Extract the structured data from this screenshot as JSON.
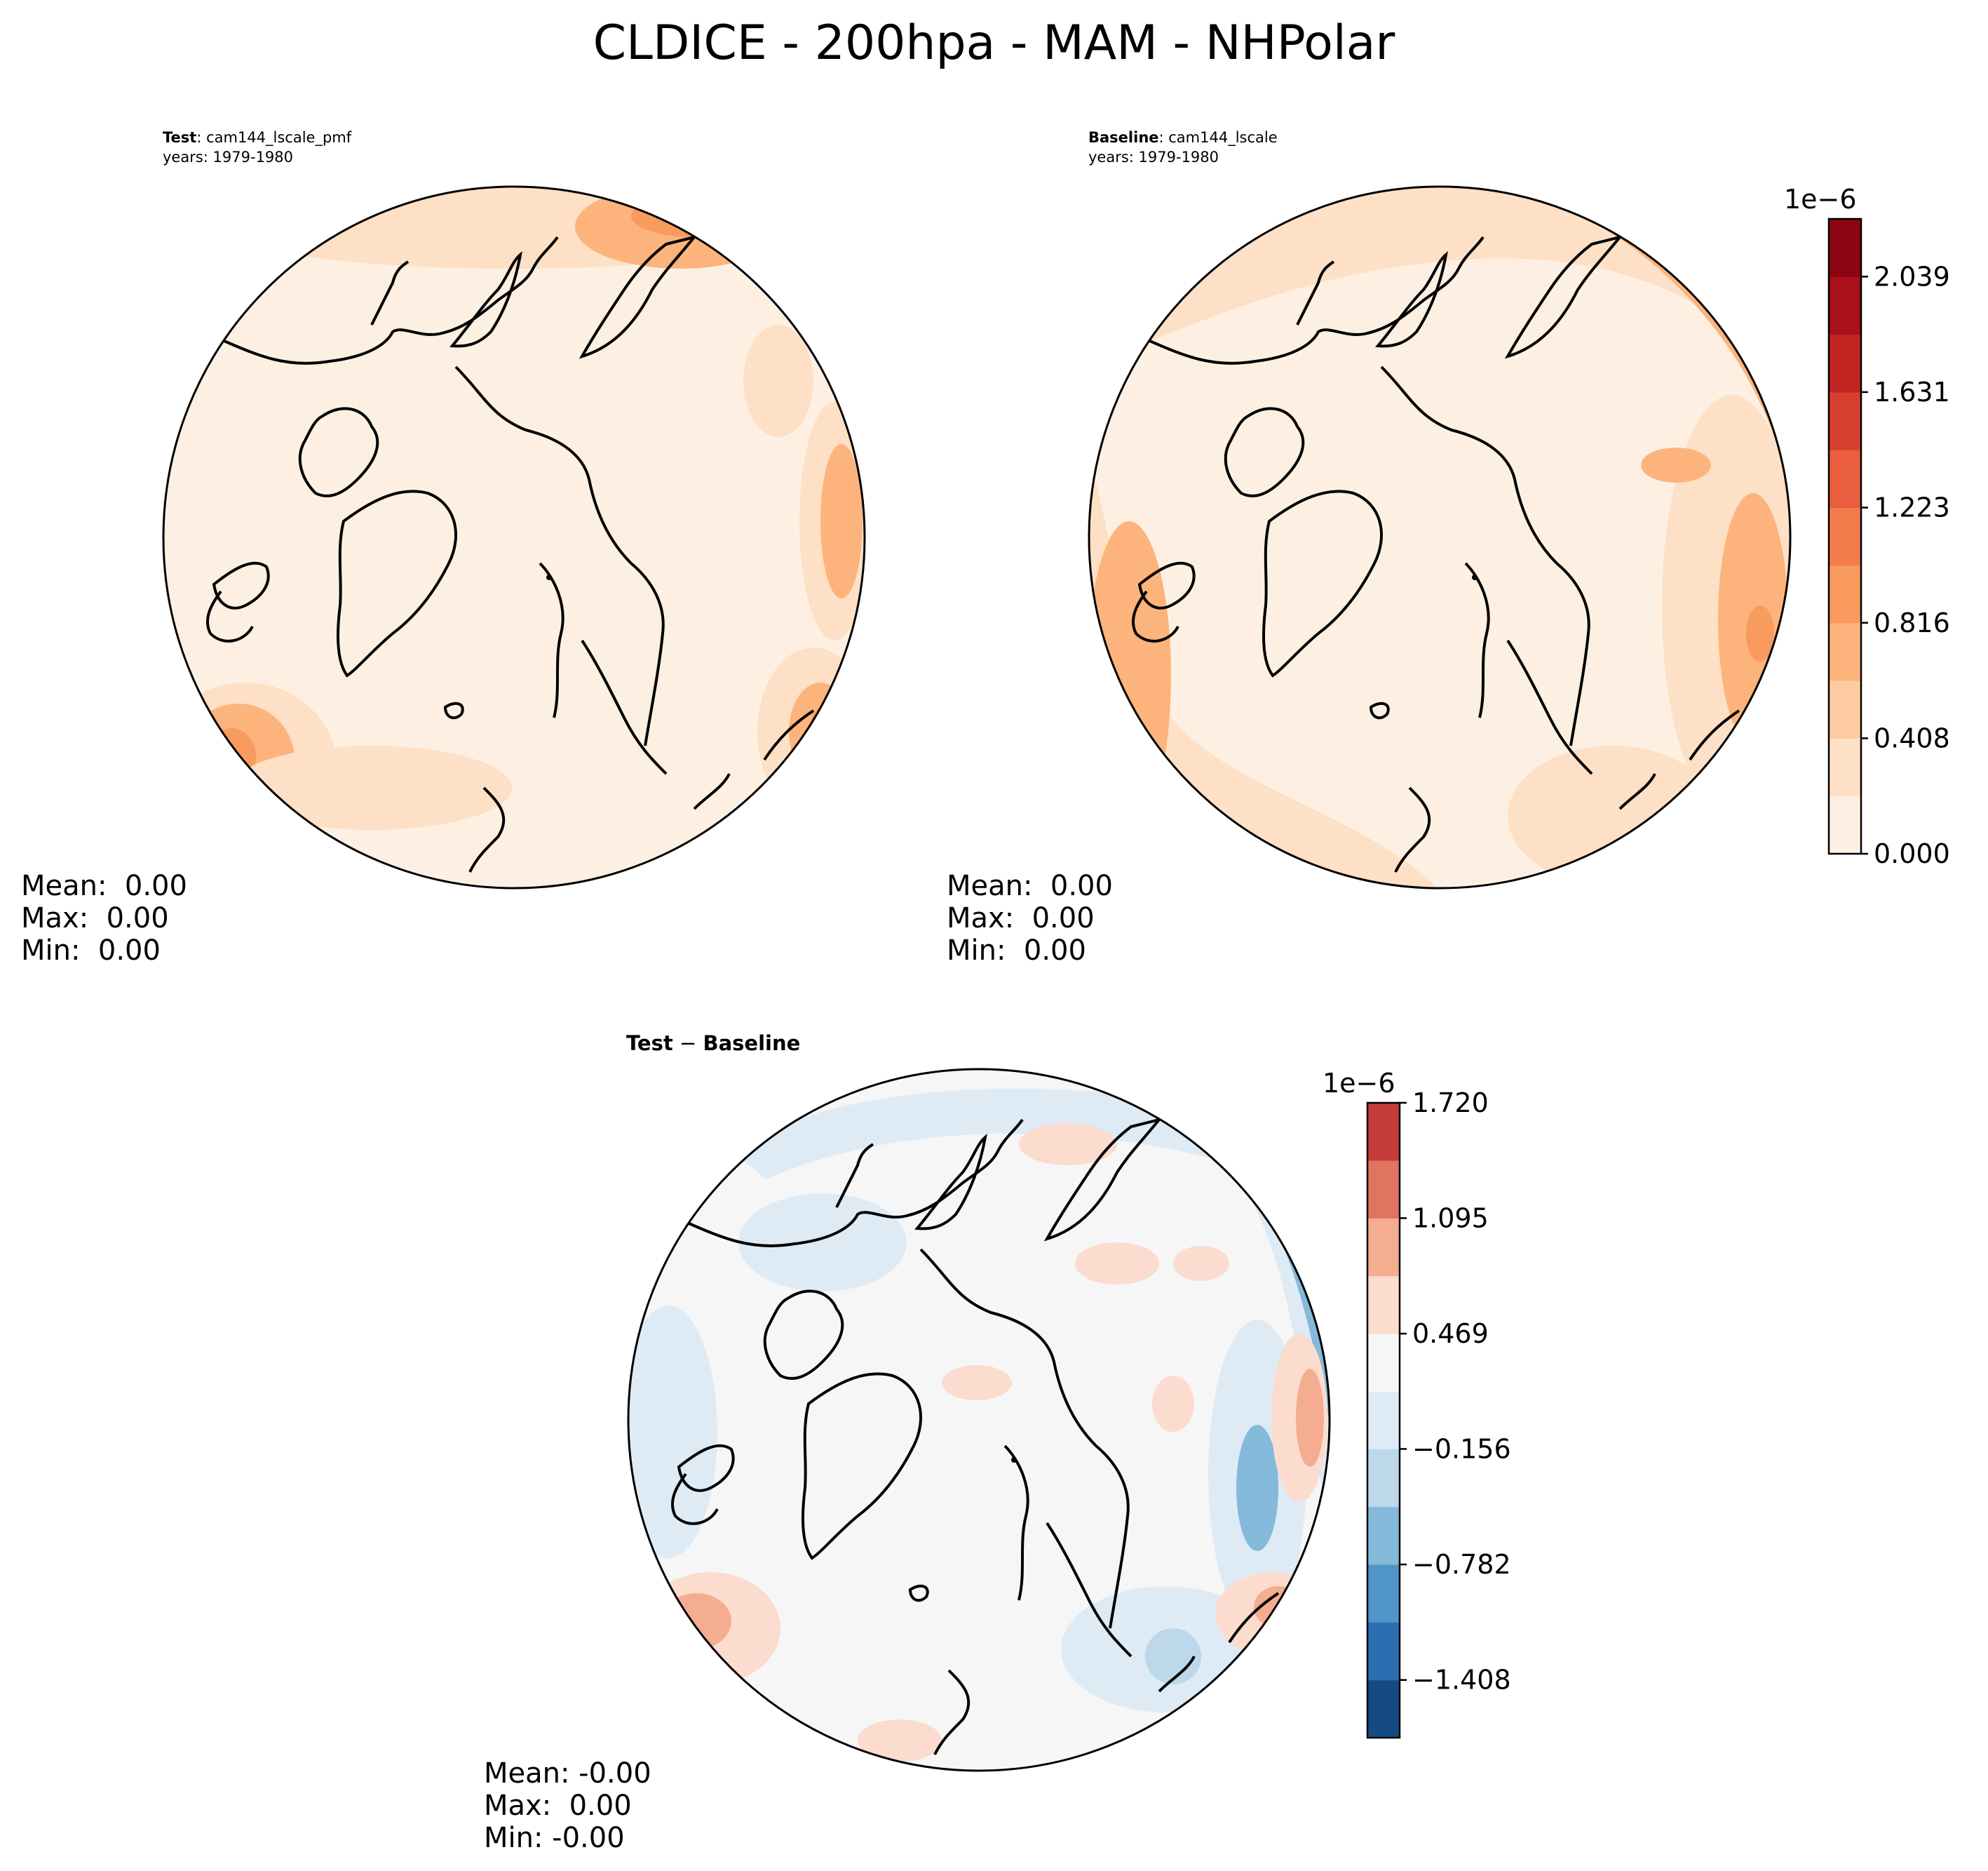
{
  "figure_title": "CLDICE - 200hpa - MAM - NHPolar",
  "panels": {
    "test": {
      "label_bold": "Test",
      "label_rest": ": cam144_lscale_pmf",
      "years": "years: 1979-1980",
      "stats": {
        "mean": "Mean:  0.00",
        "max": "Max:  0.00",
        "min": "Min:  0.00"
      }
    },
    "baseline": {
      "label_bold": "Baseline",
      "label_rest": ": cam144_lscale",
      "years": "years: 1979-1980",
      "stats": {
        "mean": "Mean:  0.00",
        "max": "Max:  0.00",
        "min": "Min:  0.00"
      }
    },
    "diff": {
      "label_bold": "Test",
      "label_sep": " − ",
      "label_bold2": "Baseline",
      "stats": {
        "mean": "Mean: -0.00",
        "max": "Max:  0.00",
        "min": "Min: -0.00"
      }
    }
  },
  "colorbars": {
    "top": {
      "exponent": "1e−6",
      "levels": [
        0.0,
        0.204,
        0.408,
        0.612,
        0.816,
        1.019,
        1.223,
        1.427,
        1.631,
        1.835,
        2.039,
        2.243
      ],
      "tick_labels": [
        "0.000",
        "0.408",
        "0.816",
        "1.223",
        "1.631",
        "2.039"
      ],
      "colors": [
        "#fdf0e3",
        "#fde0c5",
        "#fdcba0",
        "#fcb47c",
        "#f99a5e",
        "#f47c4c",
        "#e85e3e",
        "#d63f2f",
        "#c22422",
        "#a8101a",
        "#8c0513"
      ]
    },
    "bottom": {
      "exponent": "1e−6",
      "levels": [
        -1.721,
        -1.408,
        -1.095,
        -0.782,
        -0.469,
        -0.156,
        0.156,
        0.469,
        0.782,
        1.095,
        1.408,
        1.72
      ],
      "tick_labels": [
        "−1.408",
        "−0.782",
        "−0.156",
        "0.469",
        "1.095",
        "1.720"
      ],
      "colors": [
        "#144b82",
        "#2a6fb0",
        "#4f95c6",
        "#85b9d9",
        "#bcd8ea",
        "#dfebf4",
        "#f6f6f6",
        "#fbdccf",
        "#f4ad90",
        "#df7461",
        "#c43b3a",
        "#8c0b22"
      ]
    }
  },
  "chart_data": [
    {
      "type": "heatmap",
      "title": "Test: cam144_lscale_pmf",
      "subtitle": "years: 1979-1980",
      "projection": "north polar stereographic",
      "colorbar_ticks": [
        0.0,
        0.408,
        0.816,
        1.223,
        1.631,
        2.039
      ],
      "colorbar_scale": "1e-6",
      "mean": 0.0,
      "max": 0.0,
      "min": 0.0
    },
    {
      "type": "heatmap",
      "title": "Baseline: cam144_lscale",
      "subtitle": "years: 1979-1980",
      "projection": "north polar stereographic",
      "colorbar_ticks": [
        0.0,
        0.408,
        0.816,
        1.223,
        1.631,
        2.039
      ],
      "colorbar_scale": "1e-6",
      "mean": 0.0,
      "max": 0.0,
      "min": 0.0
    },
    {
      "type": "heatmap",
      "title": "Test - Baseline",
      "projection": "north polar stereographic",
      "colorbar_ticks": [
        -1.408,
        -0.782,
        -0.156,
        0.469,
        1.095,
        1.72
      ],
      "colorbar_scale": "1e-6",
      "mean": -0.0,
      "max": 0.0,
      "min": -0.0
    }
  ]
}
